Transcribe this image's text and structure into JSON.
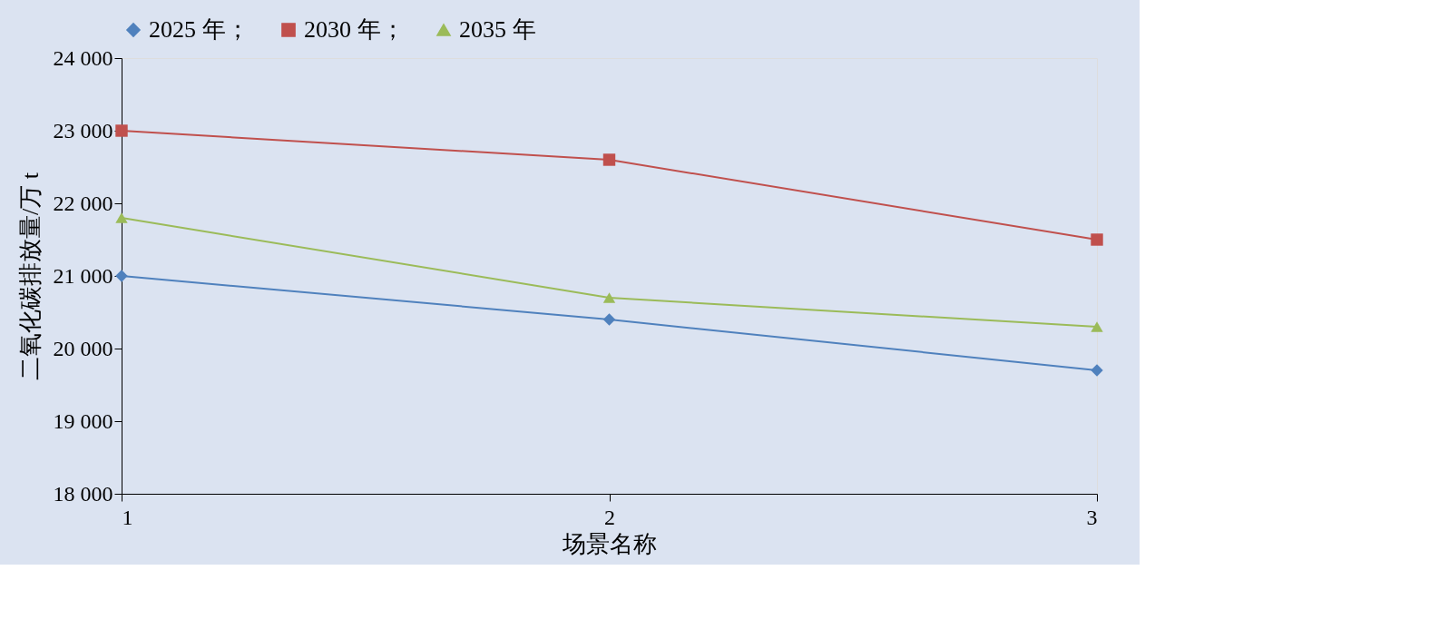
{
  "chart_data": {
    "type": "line",
    "xlabel": "场景名称",
    "ylabel": "二氧化碳排放量/万 t",
    "x": [
      1,
      2,
      3
    ],
    "xlim": [
      1,
      3
    ],
    "xticks": [
      1,
      2,
      3
    ],
    "ylim": [
      18000,
      24000
    ],
    "yticks": [
      {
        "value": 18000,
        "label": "18 000"
      },
      {
        "value": 19000,
        "label": "19 000"
      },
      {
        "value": 20000,
        "label": "20 000"
      },
      {
        "value": 21000,
        "label": "21 000"
      },
      {
        "value": 22000,
        "label": "22 000"
      },
      {
        "value": 23000,
        "label": "23 000"
      },
      {
        "value": 24000,
        "label": "24 000"
      }
    ],
    "series": [
      {
        "name": "2025 年；",
        "color": "#4f81bd",
        "marker": "diamond",
        "values": [
          21000,
          20400,
          19700
        ]
      },
      {
        "name": "2030 年；",
        "color": "#c0504d",
        "marker": "square",
        "values": [
          23000,
          22600,
          21500
        ]
      },
      {
        "name": "2035 年",
        "color": "#9bbb59",
        "marker": "triangle",
        "values": [
          21800,
          20700,
          20300
        ]
      }
    ],
    "legend": "top",
    "grid": false,
    "line_style": "solid"
  }
}
